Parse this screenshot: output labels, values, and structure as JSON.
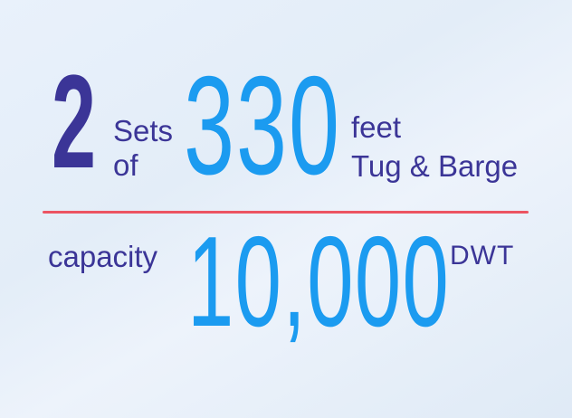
{
  "slide": {
    "fleet": {
      "count": "2",
      "count_label_line1": "Sets",
      "count_label_line2": "of",
      "length_value": "330",
      "length_unit": "feet",
      "vessel_type": "Tug & Barge"
    },
    "capacity": {
      "label": "capacity",
      "value": "10,000",
      "unit": "DWT"
    }
  },
  "colors": {
    "indigo": "#3b3597",
    "blue": "#1b9bf0",
    "red": "#ec5462",
    "background_top": "#e9f1fb",
    "background_bottom": "#dfeaf6"
  }
}
